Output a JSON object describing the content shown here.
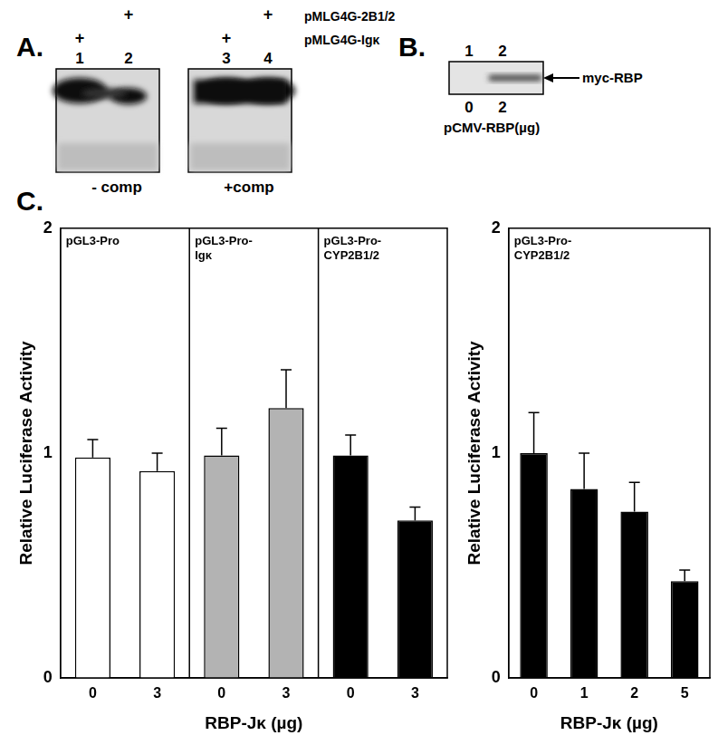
{
  "figure": {
    "panel_A": {
      "label": "A.",
      "plus": "+",
      "lanes": [
        1,
        2,
        3,
        4
      ],
      "rows": [
        {
          "name": "pMLG4G-2B1/2",
          "lanes": [
            2,
            4
          ]
        },
        {
          "name": "pMLG4G-Igκ",
          "lanes": [
            1,
            3
          ]
        }
      ],
      "gels": [
        {
          "lanes": [
            1,
            2
          ],
          "caption": "- comp"
        },
        {
          "lanes": [
            3,
            4
          ],
          "caption": "+comp"
        }
      ]
    },
    "panel_B": {
      "label": "B.",
      "lanes": [
        1,
        2
      ],
      "band": "myc-RBP",
      "doses": [
        0,
        2
      ],
      "dose_label": "pCMV-RBP(µg)"
    },
    "panel_C": {
      "label": "C."
    }
  },
  "chart_data": [
    {
      "type": "bar",
      "x_label": "RBP-Jκ (µg)",
      "y_label": "Relative Luciferase Activity",
      "ylim": [
        0,
        2
      ],
      "yticks": [
        0,
        1,
        2
      ],
      "grid": false,
      "groups": [
        {
          "label": [
            "pGL3-Pro"
          ],
          "categories": [
            "0",
            "3"
          ],
          "values": [
            0.98,
            0.92
          ],
          "errors": [
            0.08,
            0.08
          ],
          "color": "#ffffff"
        },
        {
          "label": [
            "pGL3-Pro-",
            "Igκ"
          ],
          "categories": [
            "0",
            "3"
          ],
          "values": [
            0.99,
            1.2
          ],
          "errors": [
            0.12,
            0.17
          ],
          "color": "#b3b3b3"
        },
        {
          "label": [
            "pGL3-Pro-",
            "CYP2B1/2"
          ],
          "categories": [
            "0",
            "3"
          ],
          "values": [
            0.99,
            0.7
          ],
          "errors": [
            0.09,
            0.06
          ],
          "color": "#000000"
        }
      ]
    },
    {
      "type": "bar",
      "x_label": "RBP-Jκ (µg)",
      "y_label": "Relative Luciferase Activity",
      "ylim": [
        0,
        2
      ],
      "yticks": [
        0,
        1,
        2
      ],
      "grid": false,
      "groups": [
        {
          "label": [
            "pGL3-Pro-",
            "CYP2B1/2"
          ],
          "categories": [
            "0",
            "1",
            "2",
            "5"
          ],
          "values": [
            1.0,
            0.84,
            0.74,
            0.43
          ],
          "errors": [
            0.18,
            0.16,
            0.13,
            0.05
          ],
          "color": "#000000"
        }
      ]
    }
  ]
}
